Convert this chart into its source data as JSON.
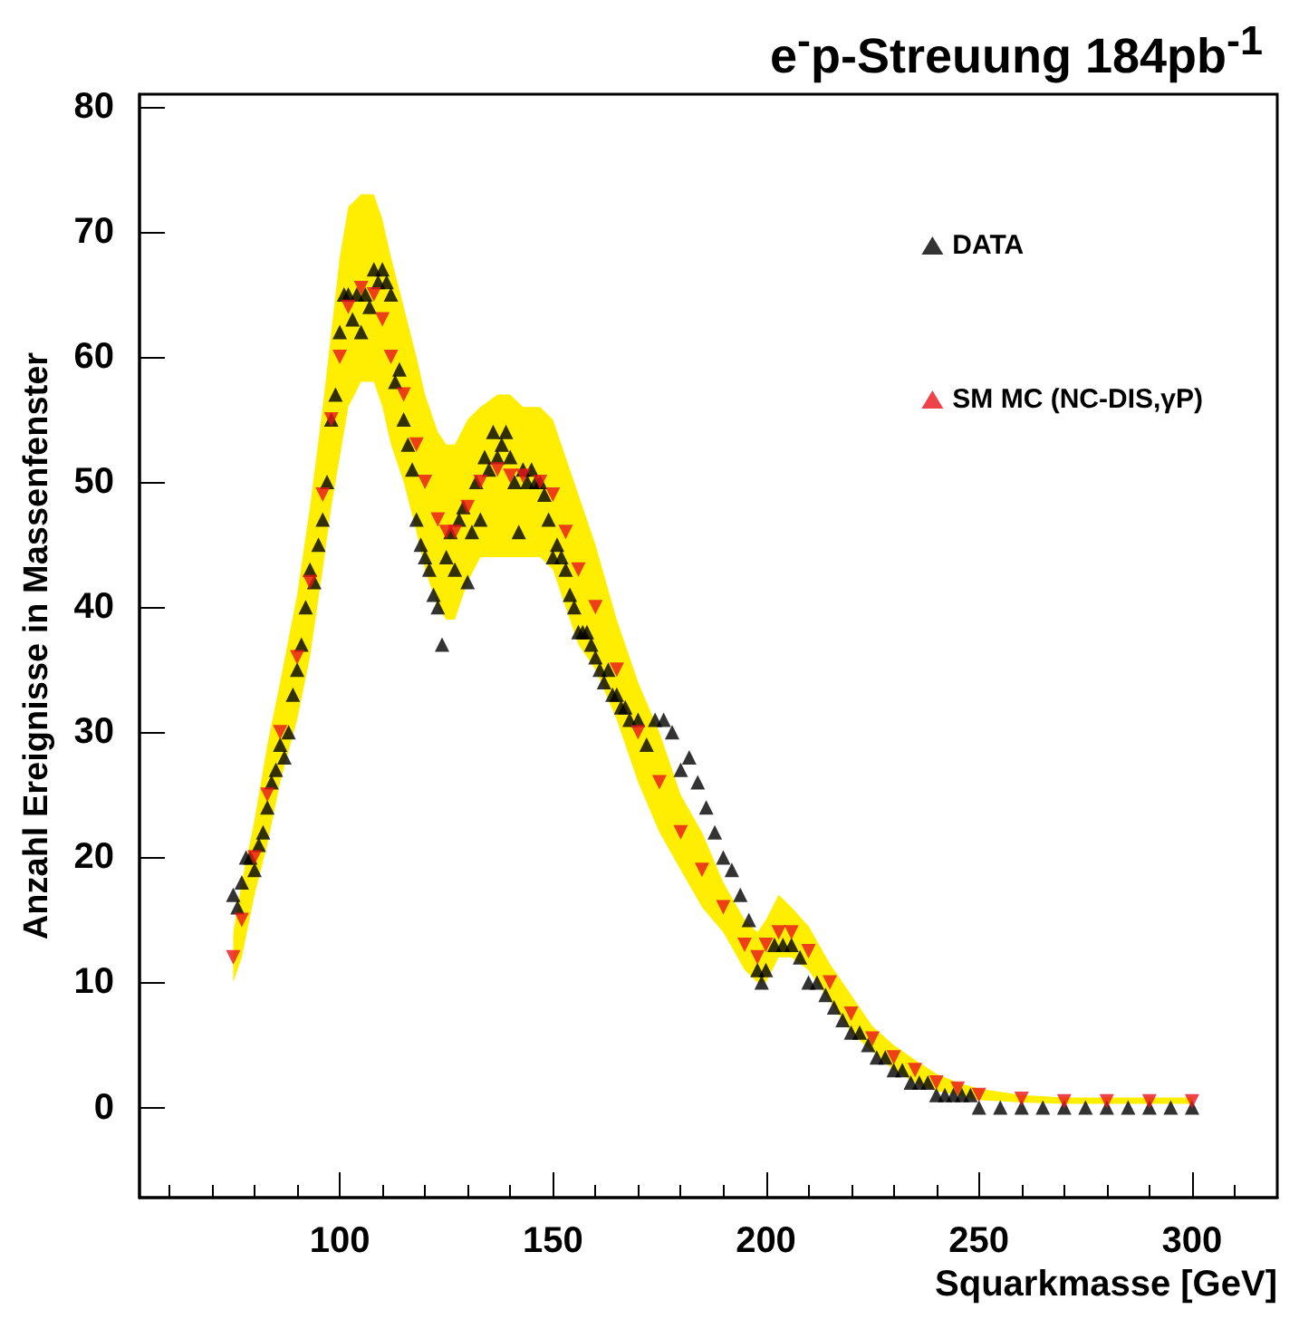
{
  "chart_data": {
    "type": "scatter",
    "title": "e$^{-}$p-Streuung 184pb$^{-1}$",
    "xlabel": "Squarkmasse [GeV]",
    "ylabel": "Anzahl Ereignisse in Massenfenster",
    "xlim": [
      53,
      320
    ],
    "xticks": [
      100,
      150,
      200,
      250,
      300
    ],
    "ylim": [
      -7.2,
      81
    ],
    "yticks": [
      0,
      10,
      20,
      30,
      40,
      50,
      60,
      70,
      80
    ],
    "grid": false,
    "legend": "top right",
    "marker": "triangle",
    "series": [
      {
        "name": "DATA",
        "color": "#000000",
        "x": [
          75,
          76,
          77,
          78,
          79,
          80,
          81,
          82,
          83,
          84,
          85,
          86,
          87,
          88,
          89,
          90,
          91,
          92,
          93,
          94,
          95,
          96,
          97,
          98,
          99,
          100,
          101,
          102,
          103,
          104,
          105,
          106,
          107,
          108,
          109,
          110,
          111,
          112,
          113,
          114,
          115,
          116,
          117,
          118,
          119,
          120,
          121,
          122,
          123,
          124,
          125,
          126,
          127,
          128,
          129,
          130,
          131,
          132,
          133,
          134,
          135,
          136,
          137,
          138,
          139,
          140,
          141,
          142,
          143,
          144,
          145,
          146,
          147,
          148,
          149,
          150,
          151,
          152,
          153,
          154,
          155,
          156,
          157,
          158,
          159,
          160,
          161,
          162,
          163,
          164,
          165,
          166,
          167,
          168,
          170,
          172,
          174,
          176,
          178,
          180,
          182,
          184,
          186,
          188,
          190,
          192,
          194,
          196,
          198,
          199,
          200,
          202,
          204,
          206,
          208,
          210,
          212,
          214,
          216,
          218,
          220,
          222,
          224,
          226,
          228,
          230,
          232,
          234,
          236,
          238,
          240,
          242,
          244,
          246,
          248,
          250,
          255,
          260,
          265,
          270,
          275,
          280,
          285,
          290,
          295,
          300
        ],
        "values": [
          17,
          16,
          18,
          20,
          20,
          19,
          21,
          22,
          24,
          26,
          27,
          29,
          28,
          30,
          33,
          35,
          37,
          40,
          43,
          42,
          45,
          47,
          50,
          55,
          57,
          62,
          65,
          65,
          63,
          65,
          62,
          65,
          64,
          67,
          66,
          67,
          66,
          65,
          58,
          59,
          55,
          53,
          51,
          47,
          45,
          44,
          43,
          41,
          40,
          37,
          44,
          46,
          43,
          47,
          48,
          42,
          46,
          50,
          47,
          52,
          51,
          54,
          52,
          53,
          54,
          52,
          50,
          46,
          51,
          50,
          51,
          50,
          50,
          49,
          47,
          44,
          45,
          44,
          43,
          41,
          40,
          38,
          38,
          38,
          37,
          36,
          35,
          34,
          35,
          33,
          33,
          32,
          32,
          31,
          31,
          29,
          31,
          31,
          30,
          27,
          28,
          26,
          24,
          22,
          20,
          19,
          17,
          15,
          11,
          10,
          11,
          13,
          13,
          13,
          12,
          10,
          10,
          9,
          8,
          7,
          6,
          6,
          5,
          4,
          4,
          3,
          3,
          2,
          2,
          2,
          1,
          1,
          1,
          1,
          1,
          0,
          0,
          0,
          0,
          0,
          0,
          0,
          0,
          0,
          0,
          0
        ]
      },
      {
        "name": "SM MC (NC-DIS,γP)",
        "color": "#e8141c",
        "x": [
          75,
          77,
          80,
          83,
          86,
          90,
          93,
          96,
          98,
          100,
          102,
          105,
          108,
          110,
          112,
          115,
          118,
          120,
          123,
          125,
          127,
          130,
          133,
          137,
          140,
          143,
          147,
          150,
          153,
          156,
          160,
          165,
          170,
          175,
          180,
          185,
          190,
          195,
          198,
          200,
          203,
          206,
          210,
          215,
          220,
          225,
          230,
          235,
          240,
          245,
          250,
          260,
          270,
          280,
          290,
          300
        ],
        "values": [
          12,
          15,
          20,
          25,
          30,
          36,
          42,
          49,
          55,
          60,
          64,
          65.5,
          65,
          63,
          60,
          57,
          53,
          50,
          47,
          46,
          46,
          48,
          50,
          51,
          50.5,
          50.5,
          50,
          49,
          46,
          43,
          40,
          35,
          30,
          26,
          22,
          19,
          16,
          13,
          12,
          13,
          14,
          14,
          12.5,
          10,
          7.5,
          5.5,
          4,
          3,
          2,
          1.5,
          1,
          0.7,
          0.5,
          0.5,
          0.5,
          0.5
        ],
        "lower": [
          10,
          12,
          17,
          21,
          26,
          31,
          36,
          43,
          48,
          52,
          56,
          58,
          58,
          56,
          53,
          50,
          46,
          43,
          40,
          39,
          39,
          42,
          44,
          44,
          44,
          44,
          44,
          43,
          40,
          37,
          35,
          31,
          26,
          22,
          19,
          16,
          14,
          11,
          10,
          10,
          12,
          12,
          11,
          8.5,
          6,
          4.5,
          3,
          2,
          1.3,
          1,
          0.6,
          0.4,
          0.3,
          0.3,
          0.3,
          0.3
        ],
        "upper": [
          14,
          18,
          23,
          29,
          34,
          41,
          48,
          56,
          62,
          68,
          72,
          73,
          73,
          71,
          68,
          64,
          60,
          57,
          54,
          53,
          53,
          55,
          56,
          57,
          57,
          56,
          56,
          55,
          52,
          49,
          45,
          39,
          34,
          30,
          25,
          22,
          18,
          15,
          14,
          15,
          17,
          16,
          14.5,
          11.5,
          9,
          6.5,
          5,
          3.8,
          2.7,
          2,
          1.5,
          1,
          0.8,
          0.8,
          0.8,
          0.8
        ]
      }
    ]
  }
}
